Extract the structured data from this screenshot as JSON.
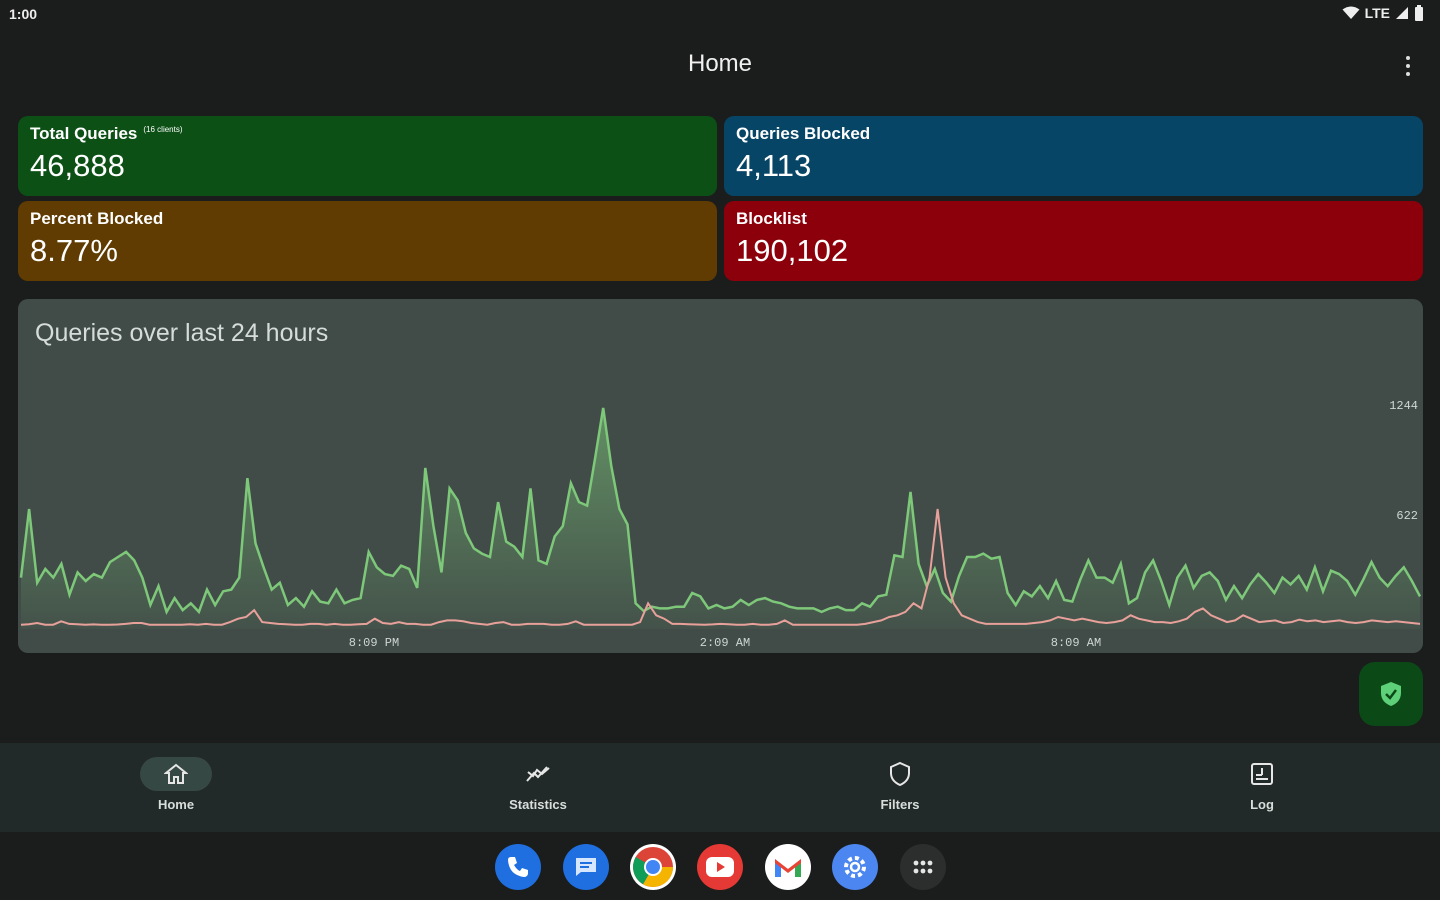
{
  "status_bar": {
    "time": "1:00",
    "network": "LTE"
  },
  "app_bar": {
    "title": "Home"
  },
  "cards": {
    "total_queries": {
      "label": "Total Queries",
      "sup": "(16 clients)",
      "value": "46,888",
      "color": "#0c5016"
    },
    "queries_blocked": {
      "label": "Queries Blocked",
      "value": "4,113",
      "color": "#074566"
    },
    "percent_blocked": {
      "label": "Percent Blocked",
      "value": "8.77%",
      "color": "#603b02"
    },
    "blocklist": {
      "label": "Blocklist",
      "value": "190,102",
      "color": "#8c000b"
    }
  },
  "chart": {
    "title": "Queries over last 24 hours",
    "y_tick_labels": [
      "1244",
      "622"
    ],
    "x_tick_labels": [
      "8:09 PM",
      "2:09 AM",
      "8:09 AM"
    ]
  },
  "chart_data": {
    "type": "area",
    "title": "Queries over last 24 hours",
    "ylim": [
      0,
      1400
    ],
    "y_ticks": [
      622,
      1244
    ],
    "x_ticks": [
      "8:09 PM",
      "2:09 AM",
      "8:09 AM"
    ],
    "grid": false,
    "series": [
      {
        "color": "#7ec87a",
        "values": [
          300,
          700,
          270,
          350,
          300,
          380,
          200,
          330,
          280,
          320,
          300,
          390,
          420,
          450,
          400,
          300,
          140,
          250,
          100,
          180,
          110,
          150,
          100,
          230,
          140,
          220,
          230,
          300,
          880,
          500,
          360,
          230,
          270,
          140,
          180,
          130,
          220,
          160,
          150,
          230,
          150,
          170,
          180,
          450,
          360,
          320,
          310,
          370,
          350,
          240,
          940,
          600,
          330,
          820,
          750,
          560,
          470,
          440,
          420,
          740,
          510,
          480,
          420,
          820,
          400,
          380,
          540,
          600,
          850,
          740,
          720,
          1000,
          1290,
          950,
          700,
          610,
          150,
          105,
          130,
          120,
          120,
          130,
          130,
          210,
          190,
          120,
          140,
          120,
          130,
          170,
          140,
          170,
          180,
          160,
          150,
          130,
          120,
          120,
          120,
          100,
          120,
          130,
          110,
          110,
          150,
          130,
          190,
          200,
          430,
          420,
          800,
          380,
          250,
          350,
          210,
          160,
          310,
          420,
          420,
          440,
          410,
          420,
          210,
          140,
          220,
          190,
          250,
          180,
          280,
          170,
          160,
          290,
          400,
          300,
          300,
          270,
          380,
          150,
          180,
          330,
          400,
          280,
          140,
          300,
          370,
          240,
          310,
          330,
          280,
          170,
          250,
          180,
          260,
          320,
          270,
          210,
          300,
          260,
          310,
          230,
          360,
          220,
          340,
          320,
          280,
          200,
          290,
          390,
          300,
          250,
          310,
          360,
          280,
          190
        ]
      },
      {
        "color": "#e8a19a",
        "values": [
          25,
          28,
          35,
          25,
          25,
          45,
          30,
          28,
          25,
          27,
          25,
          25,
          26,
          30,
          35,
          35,
          25,
          25,
          25,
          25,
          25,
          28,
          25,
          30,
          25,
          25,
          40,
          60,
          70,
          110,
          40,
          35,
          30,
          28,
          25,
          25,
          30,
          30,
          25,
          30,
          25,
          25,
          28,
          30,
          60,
          35,
          30,
          40,
          30,
          30,
          25,
          25,
          40,
          50,
          50,
          45,
          35,
          30,
          25,
          35,
          40,
          25,
          25,
          30,
          30,
          30,
          25,
          25,
          30,
          45,
          25,
          25,
          25,
          25,
          25,
          25,
          25,
          40,
          150,
          80,
          60,
          30,
          30,
          28,
          26,
          25,
          27,
          30,
          28,
          25,
          25,
          30,
          25,
          25,
          30,
          50,
          25,
          25,
          25,
          25,
          25,
          25,
          25,
          25,
          25,
          30,
          40,
          50,
          70,
          80,
          100,
          150,
          120,
          300,
          700,
          300,
          150,
          80,
          60,
          40,
          30,
          30,
          30,
          30,
          30,
          30,
          35,
          40,
          50,
          70,
          60,
          50,
          60,
          50,
          40,
          35,
          40,
          50,
          80,
          60,
          50,
          40,
          40,
          35,
          45,
          60,
          100,
          120,
          80,
          60,
          40,
          50,
          80,
          60,
          40,
          45,
          50,
          35,
          40,
          55,
          45,
          50,
          40,
          45,
          50,
          40,
          35,
          40,
          50,
          45,
          40,
          45,
          40,
          35,
          30
        ]
      }
    ]
  },
  "nav": {
    "items": [
      {
        "label": "Home",
        "icon": "home-icon",
        "active": true
      },
      {
        "label": "Statistics",
        "icon": "statistics-icon",
        "active": false
      },
      {
        "label": "Filters",
        "icon": "shield-icon",
        "active": false
      },
      {
        "label": "Log",
        "icon": "log-icon",
        "active": false
      }
    ]
  },
  "dock": {
    "apps": [
      "phone",
      "messages",
      "chrome",
      "youtube",
      "gmail",
      "settings",
      "app-drawer"
    ]
  }
}
